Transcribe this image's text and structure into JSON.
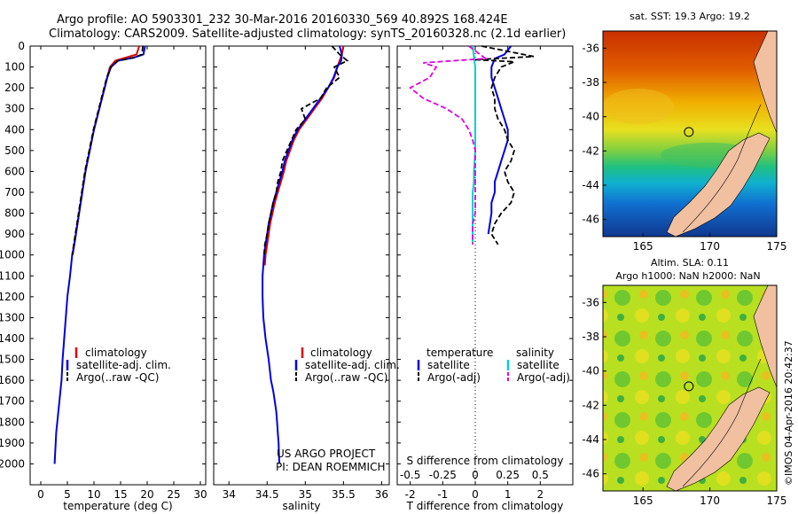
{
  "title": {
    "line1": "Argo profile: AO 5903301_232 30-Mar-2016 20160330_569 40.892S 168.424E",
    "line2": "Climatology: CARS2009. Satellite-adjusted climatology: synTS_20160328.nc (2.1d earlier)"
  },
  "credit": {
    "project": "US ARGO PROJECT",
    "pi": "PI: DEAN ROEMMICH",
    "stamp": "©IMOS 04-Apr-2016 20:42:37"
  },
  "colors": {
    "climatology": "#e00000",
    "satellite": "#0000e0",
    "argo": "#000000",
    "salinity_satellite": "#00d0d0",
    "salinity_argo": "#e000e0",
    "land": "#f0c0a0"
  },
  "chart_data": [
    {
      "type": "line",
      "id": "temperature",
      "xlabel": "temperature (deg C)",
      "ylabel": "",
      "xlim": [
        -2,
        31
      ],
      "ylim": [
        2100,
        0
      ],
      "y_reversed": true,
      "xticks": [
        "0",
        "5",
        "10",
        "15",
        "20",
        "25",
        "30"
      ],
      "yticks": [
        "0",
        "100",
        "200",
        "300",
        "400",
        "500",
        "600",
        "700",
        "800",
        "900",
        "1000",
        "1100",
        "1200",
        "1300",
        "1400",
        "1500",
        "1600",
        "1700",
        "1800",
        "1900",
        "2000"
      ],
      "legend": [
        "climatology",
        "satellite-adj. clim.",
        "Argo(..raw -QC)"
      ],
      "series": [
        {
          "name": "climatology",
          "color": "#e00000",
          "x": [
            18.5,
            18.0,
            16.0,
            14.0,
            13.0,
            12.5,
            12.0,
            11.5,
            11.0,
            10.5,
            10.0,
            9.6,
            9.2,
            8.8,
            8.4,
            8.1,
            7.8,
            7.5,
            7.2,
            6.9,
            6.6,
            6.3,
            6.0
          ],
          "y": [
            0,
            40,
            55,
            70,
            100,
            150,
            200,
            250,
            300,
            350,
            400,
            450,
            500,
            550,
            600,
            650,
            700,
            750,
            800,
            850,
            900,
            950,
            1000
          ]
        },
        {
          "name": "satellite-adj. clim.",
          "color": "#0000e0",
          "x": [
            19.6,
            19.3,
            17.5,
            14.5,
            13.2,
            12.5,
            12.0,
            11.5,
            11.0,
            10.5,
            10.0,
            9.6,
            9.2,
            8.8,
            8.4,
            8.1,
            7.8,
            7.5,
            7.2,
            6.9,
            6.6,
            6.3,
            5.9,
            5.5,
            5.0,
            4.7,
            4.4,
            4.1,
            3.9,
            3.7,
            3.5,
            3.3,
            3.1,
            2.9,
            2.8,
            2.7,
            2.6
          ],
          "y": [
            0,
            40,
            55,
            70,
            100,
            150,
            200,
            250,
            300,
            350,
            400,
            450,
            500,
            550,
            600,
            650,
            700,
            750,
            800,
            850,
            900,
            950,
            1000,
            1100,
            1200,
            1300,
            1400,
            1500,
            1600,
            1650,
            1700,
            1750,
            1800,
            1850,
            1900,
            1950,
            2000
          ]
        },
        {
          "name": "Argo(..raw -QC)",
          "color": "#000000",
          "x": [
            19.2,
            19.0,
            17.5,
            14.5,
            13.2,
            12.4,
            11.9,
            11.4,
            10.9,
            10.4,
            9.9,
            9.5,
            9.1,
            8.7,
            8.3,
            8.0,
            7.7,
            7.4,
            7.1,
            6.8,
            6.5,
            6.2,
            5.9
          ],
          "y": [
            0,
            40,
            55,
            70,
            100,
            150,
            200,
            250,
            300,
            350,
            400,
            450,
            500,
            550,
            600,
            650,
            700,
            750,
            800,
            850,
            900,
            950,
            1000
          ]
        }
      ]
    },
    {
      "type": "line",
      "id": "salinity",
      "xlabel": "salinity",
      "xlim": [
        33.8,
        36.1
      ],
      "ylim": [
        2100,
        0
      ],
      "y_reversed": true,
      "xticks": [
        "34",
        "34.5",
        "35",
        "35.5",
        "36"
      ],
      "legend": [
        "climatology",
        "satellite-adj. clim.",
        "Argo(..raw -QC)"
      ],
      "series": [
        {
          "name": "climatology",
          "color": "#e00000",
          "x": [
            35.5,
            35.48,
            35.45,
            35.42,
            35.38,
            35.3,
            35.22,
            35.12,
            35.02,
            34.92,
            34.85,
            34.8,
            34.75,
            34.72,
            34.68,
            34.64,
            34.6,
            34.57,
            34.54,
            34.52,
            34.5,
            34.48,
            34.47
          ],
          "y": [
            0,
            40,
            70,
            100,
            150,
            200,
            250,
            300,
            350,
            400,
            450,
            500,
            550,
            600,
            650,
            700,
            750,
            800,
            850,
            900,
            950,
            1000,
            1050
          ]
        },
        {
          "name": "satellite-adj. clim.",
          "color": "#0000e0",
          "x": [
            35.45,
            35.48,
            35.47,
            35.42,
            35.37,
            35.3,
            35.2,
            35.1,
            35.0,
            34.9,
            34.83,
            34.78,
            34.73,
            34.7,
            34.66,
            34.62,
            34.58,
            34.55,
            34.52,
            34.5,
            34.48,
            34.46,
            34.45,
            34.44,
            34.44,
            34.45,
            34.48,
            34.52,
            34.55,
            34.58,
            34.6,
            34.62,
            34.63,
            34.64,
            34.65,
            34.66
          ],
          "y": [
            0,
            40,
            70,
            100,
            150,
            200,
            250,
            300,
            350,
            400,
            450,
            500,
            550,
            600,
            650,
            700,
            750,
            800,
            850,
            900,
            950,
            1000,
            1050,
            1100,
            1200,
            1300,
            1400,
            1500,
            1600,
            1650,
            1700,
            1750,
            1800,
            1850,
            1900,
            2000
          ]
        },
        {
          "name": "Argo(..raw -QC)",
          "color": "#000000",
          "x": [
            35.35,
            35.45,
            35.55,
            35.38,
            35.45,
            35.28,
            35.2,
            34.95,
            35.0,
            34.88,
            34.82,
            34.76,
            34.7,
            34.68,
            34.64,
            34.62,
            34.58,
            34.55,
            34.52,
            34.5,
            34.47,
            34.46
          ],
          "y": [
            0,
            40,
            70,
            100,
            150,
            200,
            250,
            300,
            350,
            400,
            450,
            500,
            550,
            600,
            650,
            700,
            750,
            800,
            850,
            900,
            950,
            1000
          ]
        }
      ]
    },
    {
      "type": "line",
      "id": "difference",
      "xlabel": "T difference from climatology",
      "xlabel2": "S difference from climatology",
      "xlim": [
        -2.4,
        3.0
      ],
      "ylim": [
        2100,
        0
      ],
      "y_reversed": true,
      "xticks": [
        "-2",
        "-1",
        "0",
        "1",
        "2"
      ],
      "xticks_top": [
        "-0.5",
        "-0.25",
        "0",
        "0.25",
        "0.5"
      ],
      "legend_temperature": {
        "title": "temperature",
        "items": [
          "satellite",
          "Argo(-adj)"
        ]
      },
      "legend_salinity": {
        "title": "salinity",
        "items": [
          "satellite",
          "Argo(-adj)"
        ]
      },
      "series": [
        {
          "name": "satellite",
          "group": "temperature",
          "color": "#0000e0",
          "x": [
            1.1,
            0.9,
            0.6,
            0.5,
            0.5,
            0.6,
            0.7,
            0.8,
            0.9,
            1.0,
            1.0,
            0.9,
            0.8,
            0.7,
            0.6,
            0.6,
            0.5,
            0.5,
            0.4
          ],
          "y": [
            0,
            40,
            60,
            100,
            150,
            200,
            250,
            300,
            350,
            400,
            450,
            500,
            550,
            600,
            650,
            700,
            750,
            800,
            900
          ]
        },
        {
          "name": "Argo(-adj)",
          "group": "temperature",
          "color": "#000000",
          "x": [
            0.2,
            1.8,
            0.0,
            1.2,
            0.8,
            0.6,
            0.5,
            0.6,
            0.6,
            0.7,
            0.9,
            1.0,
            1.2,
            1.1,
            0.9,
            1.0,
            1.2,
            1.1,
            0.8,
            0.6,
            0.5,
            0.7
          ],
          "y": [
            0,
            50,
            65,
            75,
            100,
            150,
            200,
            250,
            300,
            350,
            400,
            450,
            500,
            550,
            600,
            650,
            700,
            750,
            800,
            850,
            900,
            950
          ]
        },
        {
          "name": "satellite",
          "group": "salinity",
          "color": "#00d0d0",
          "x": [
            -0.02,
            -0.01,
            0.0,
            0.0,
            0.0,
            0.0,
            0.0,
            -0.01,
            -0.01,
            -0.02,
            -0.02,
            -0.02,
            -0.02,
            -0.02,
            -0.02
          ],
          "y": [
            0,
            50,
            100,
            200,
            300,
            400,
            500,
            600,
            650,
            700,
            750,
            800,
            850,
            900,
            950
          ]
        },
        {
          "name": "Argo(-adj)",
          "group": "salinity",
          "color": "#e000e0",
          "x": [
            -0.05,
            0.08,
            -0.4,
            -0.3,
            -0.35,
            -0.5,
            -0.4,
            -0.22,
            -0.1,
            -0.05,
            -0.02,
            0.0,
            0.0,
            0.0,
            0.0,
            0.0,
            -0.02,
            -0.02,
            -0.02
          ],
          "y": [
            0,
            60,
            80,
            100,
            150,
            200,
            250,
            300,
            350,
            400,
            450,
            500,
            600,
            700,
            750,
            800,
            850,
            900,
            950
          ]
        }
      ]
    },
    {
      "type": "heatmap",
      "id": "sst-map",
      "title": "sat. SST: 19.3  Argo: 19.2",
      "xlim": [
        162,
        175
      ],
      "ylim": [
        -47,
        -35
      ],
      "xticks": [
        "165",
        "170",
        "175"
      ],
      "yticks": [
        "-36",
        "-38",
        "-40",
        "-42",
        "-44",
        "-46"
      ],
      "marker": {
        "lon": 168.424,
        "lat": -40.892
      }
    },
    {
      "type": "heatmap",
      "id": "sla-map",
      "title": "Altim. SLA: 0.11",
      "subtitle": "Argo h1000: NaN h2000: NaN",
      "xlim": [
        162,
        175
      ],
      "ylim": [
        -47,
        -35
      ],
      "xticks": [
        "165",
        "170",
        "175"
      ],
      "yticks": [
        "-36",
        "-38",
        "-40",
        "-42",
        "-44",
        "-46"
      ],
      "marker": {
        "lon": 168.424,
        "lat": -40.892
      }
    }
  ]
}
